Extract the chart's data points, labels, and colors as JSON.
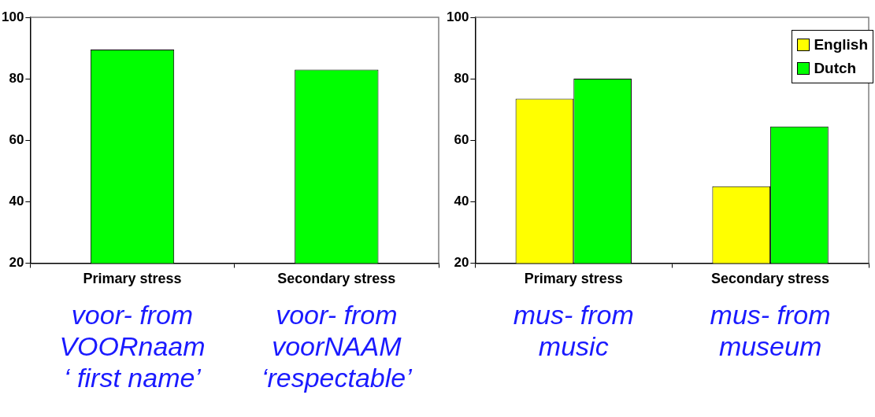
{
  "chart_data": [
    {
      "type": "bar",
      "categories": [
        "Primary stress",
        "Secondary stress"
      ],
      "series": [
        {
          "color": "#00ff00",
          "values": [
            89.5,
            83
          ]
        }
      ],
      "ylim": [
        20,
        100
      ],
      "yticks": [
        20,
        40,
        60,
        80,
        100
      ],
      "grid": false,
      "legend": false,
      "annotations": [
        "voor- from\nVOORnaam\n‘ first name’",
        "voor- from\nvoorNAAM\n‘respectable’"
      ]
    },
    {
      "type": "bar",
      "categories": [
        "Primary stress",
        "Secondary stress"
      ],
      "series": [
        {
          "name": "English",
          "color": "#ffff00",
          "values": [
            73.5,
            45
          ]
        },
        {
          "name": "Dutch",
          "color": "#00ff00",
          "values": [
            80,
            64.5
          ]
        }
      ],
      "ylim": [
        20,
        100
      ],
      "yticks": [
        20,
        40,
        60,
        80,
        100
      ],
      "grid": false,
      "legend": "top right",
      "annotations": [
        "mus- from\nmusic",
        "mus- from\nmuseum"
      ]
    }
  ]
}
